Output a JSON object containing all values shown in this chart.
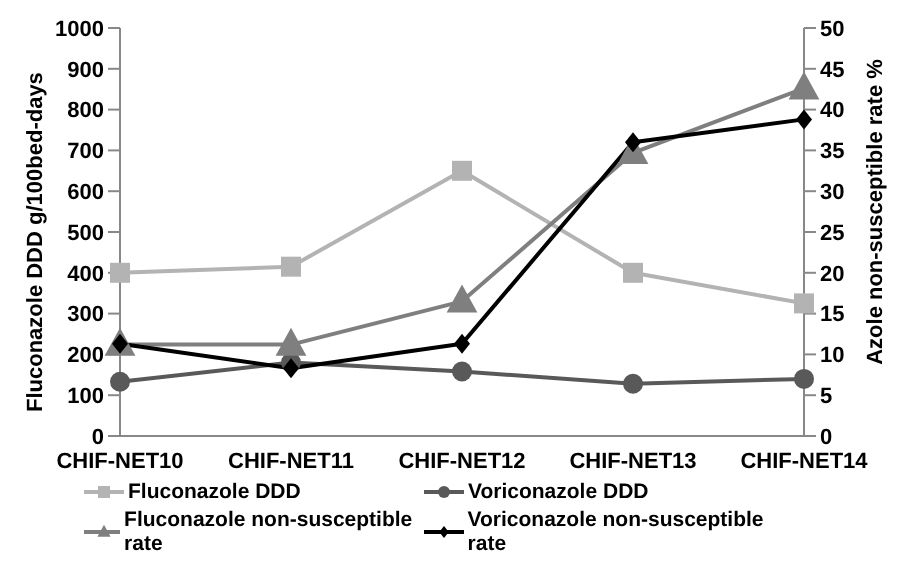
{
  "chart_data": {
    "type": "line",
    "categories": [
      "CHIF-NET10",
      "CHIF-NET11",
      "CHIF-NET12",
      "CHIF-NET13",
      "CHIF-NET14"
    ],
    "ylabel": "Fluconazole DDD g/100bed-days",
    "y2label": "Azole non-susceptible rate %",
    "ylim": [
      0,
      1000
    ],
    "yticks": [
      0,
      100,
      200,
      300,
      400,
      500,
      600,
      700,
      800,
      900,
      1000
    ],
    "y2lim": [
      0,
      50
    ],
    "y2ticks": [
      0,
      5,
      10,
      15,
      20,
      25,
      30,
      35,
      40,
      45,
      50
    ],
    "grid": false,
    "legend": "bottom",
    "series": [
      {
        "name": "Fluconazole DDD",
        "color": "#b3b3b3",
        "marker": "square",
        "values": [
          400,
          415,
          650,
          400,
          325
        ]
      },
      {
        "name": "Voriconazole DDD",
        "color": "#595959",
        "marker": "circle",
        "values": [
          133,
          180,
          158,
          128,
          140
        ]
      },
      {
        "name": "Fluconazole non-susceptible rate",
        "color": "#7f7f7f",
        "marker": "triangle",
        "axis": "y2",
        "values": [
          11.2,
          11.2,
          16.5,
          34.7,
          42.6
        ]
      },
      {
        "name": "Voriconazole non-susceptible rate",
        "color": "#000000",
        "marker": "diamond",
        "axis": "y2",
        "values": [
          11.3,
          8.3,
          11.3,
          36,
          38.8
        ]
      }
    ]
  }
}
